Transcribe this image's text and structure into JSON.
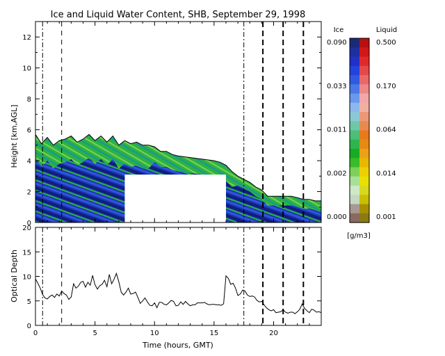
{
  "chart_data": [
    {
      "type": "heatmap",
      "title": "Ice and Liquid Water Content, SHB, September 29, 1998",
      "ylabel": "Height [km,AGL]",
      "xlim": [
        0,
        24
      ],
      "ylim": [
        0,
        13
      ],
      "xticks": [
        "0",
        "5",
        "10",
        "15",
        "20"
      ],
      "yticks": [
        "0",
        "2",
        "4",
        "6",
        "8",
        "10",
        "12"
      ],
      "ytick_values": [
        0,
        2,
        4,
        6,
        8,
        10,
        12
      ],
      "xtick_values": [
        0,
        5,
        10,
        15,
        20
      ],
      "vertical_lines": [
        {
          "t": 0.6,
          "style": "dash-dot"
        },
        {
          "t": 2.2,
          "style": "dash"
        },
        {
          "t": 17.5,
          "style": "dash-dot"
        },
        {
          "t": 19.1,
          "style": "dash-heavy"
        },
        {
          "t": 20.8,
          "style": "dash-heavy"
        },
        {
          "t": 22.5,
          "style": "dash-heavy"
        }
      ],
      "no_data_block": {
        "t_start": 7.5,
        "t_end": 16.0,
        "h_top": 3.1
      },
      "cloud_top_km": [
        [
          0.0,
          5.7
        ],
        [
          0.5,
          5.1
        ],
        [
          1.0,
          5.5
        ],
        [
          1.5,
          5.0
        ],
        [
          2.0,
          5.3
        ],
        [
          2.5,
          5.4
        ],
        [
          3.0,
          5.6
        ],
        [
          3.5,
          5.2
        ],
        [
          4.0,
          5.4
        ],
        [
          4.5,
          5.7
        ],
        [
          5.0,
          5.3
        ],
        [
          5.5,
          5.6
        ],
        [
          6.0,
          5.2
        ],
        [
          6.5,
          5.6
        ],
        [
          7.0,
          5.0
        ],
        [
          7.5,
          5.3
        ],
        [
          8.0,
          5.1
        ],
        [
          8.5,
          5.2
        ],
        [
          9.0,
          5.0
        ],
        [
          9.5,
          5.0
        ],
        [
          10.0,
          4.9
        ],
        [
          10.5,
          4.6
        ],
        [
          11.0,
          4.6
        ],
        [
          11.5,
          4.4
        ],
        [
          12.0,
          4.3
        ],
        [
          13.0,
          4.2
        ],
        [
          14.0,
          4.1
        ],
        [
          15.0,
          4.0
        ],
        [
          15.5,
          3.9
        ],
        [
          16.0,
          3.7
        ],
        [
          16.5,
          3.3
        ],
        [
          17.0,
          3.0
        ],
        [
          17.5,
          2.8
        ],
        [
          18.0,
          2.6
        ],
        [
          18.5,
          2.3
        ],
        [
          19.0,
          2.1
        ],
        [
          19.5,
          1.7
        ],
        [
          20.0,
          1.7
        ],
        [
          20.5,
          1.7
        ],
        [
          21.0,
          1.7
        ],
        [
          21.5,
          1.7
        ],
        [
          22.0,
          1.6
        ],
        [
          22.5,
          1.5
        ],
        [
          23.0,
          1.5
        ],
        [
          23.5,
          1.4
        ],
        [
          24.0,
          1.4
        ]
      ],
      "colorbar": {
        "ice_label": "Ice",
        "liquid_label": "Liquid",
        "units": "[g/m3]",
        "ice_ticks": [
          "0.090",
          "0.033",
          "0.011",
          "0.002",
          "0.000"
        ],
        "liquid_ticks": [
          "0.500",
          "0.170",
          "0.064",
          "0.014",
          "0.001"
        ],
        "ice_colors": [
          "#1a2a7a",
          "#1e2fa0",
          "#2030c8",
          "#2442dc",
          "#2f5ae0",
          "#4a78e6",
          "#6a98ea",
          "#8cb8ee",
          "#8ac8d8",
          "#6fc7a8",
          "#4cbe78",
          "#2fb44e",
          "#16ac24",
          "#38bc2a",
          "#7ed05a",
          "#a8e096",
          "#cfe8c8",
          "#c6d8c4",
          "#a89a90",
          "#8a6a60"
        ],
        "liquid_colors": [
          "#b81010",
          "#d01818",
          "#e02a2a",
          "#e44848",
          "#ea6868",
          "#ee8888",
          "#f2a8a8",
          "#f0b0a0",
          "#ec9878",
          "#e88a50",
          "#e87a1c",
          "#e68a10",
          "#eea018",
          "#e8b800",
          "#ecd000",
          "#e8e000",
          "#d8d820",
          "#c8c000",
          "#a89000",
          "#8c7a10"
        ]
      }
    },
    {
      "type": "line",
      "ylabel": "Optical Depth",
      "xlabel": "Time (hours, GMT)",
      "xlim": [
        0,
        24
      ],
      "ylim": [
        0,
        20
      ],
      "xticks": [
        "0",
        "5",
        "10",
        "15",
        "20"
      ],
      "xtick_values": [
        0,
        5,
        10,
        15,
        20
      ],
      "yticks": [
        "0",
        "5",
        "10",
        "15",
        "20"
      ],
      "ytick_values": [
        0,
        5,
        10,
        15,
        20
      ],
      "series": [
        {
          "x": [
            0.0,
            0.2,
            0.4,
            0.6,
            0.8,
            1.0,
            1.2,
            1.4,
            1.6,
            1.8,
            2.0,
            2.2,
            2.4,
            2.6,
            2.8,
            3.0,
            3.2,
            3.4,
            3.6,
            3.8,
            4.0,
            4.2,
            4.4,
            4.6,
            4.8,
            5.0,
            5.2,
            5.4,
            5.6,
            5.8,
            6.0,
            6.2,
            6.4,
            6.6,
            6.8,
            7.0,
            7.2,
            7.4,
            7.6,
            7.8,
            8.0,
            8.2,
            8.4,
            8.6,
            8.8,
            9.0,
            9.2,
            9.4,
            9.6,
            9.8,
            10.0,
            10.2,
            10.4,
            10.6,
            10.8,
            11.0,
            11.2,
            11.4,
            11.6,
            11.8,
            12.0,
            12.2,
            12.4,
            12.6,
            12.8,
            13.0,
            13.2,
            13.4,
            13.6,
            13.8,
            14.0,
            14.2,
            14.4,
            14.6,
            14.8,
            15.0,
            15.2,
            15.4,
            15.6,
            15.8,
            16.0,
            16.2,
            16.4,
            16.6,
            16.8,
            17.0,
            17.2,
            17.4,
            17.6,
            17.8,
            18.0,
            18.2,
            18.4,
            18.6,
            18.8,
            19.0,
            19.2,
            19.4,
            19.6,
            19.8,
            20.0,
            20.2,
            20.4,
            20.6,
            20.8,
            21.0,
            21.2,
            21.4,
            21.6,
            21.8,
            22.0,
            22.2,
            22.4,
            22.6,
            22.8,
            23.0,
            23.2,
            23.4,
            23.6,
            23.8,
            24.0
          ],
          "y": [
            9.5,
            8.6,
            7.6,
            6.3,
            5.6,
            5.4,
            5.9,
            6.2,
            5.7,
            6.4,
            6.0,
            7.0,
            6.5,
            6.2,
            5.3,
            5.8,
            8.5,
            7.6,
            8.0,
            8.8,
            9.0,
            7.8,
            8.8,
            8.2,
            10.2,
            8.3,
            7.4,
            8.1,
            8.4,
            9.2,
            7.9,
            10.4,
            8.5,
            9.4,
            10.6,
            8.9,
            6.8,
            6.2,
            6.8,
            7.6,
            6.4,
            6.5,
            6.8,
            5.7,
            4.5,
            5.0,
            5.6,
            4.8,
            4.1,
            4.0,
            4.6,
            3.6,
            4.7,
            4.7,
            4.3,
            4.2,
            4.6,
            5.1,
            4.9,
            4.0,
            4.1,
            4.8,
            4.3,
            4.9,
            4.4,
            4.0,
            4.2,
            4.2,
            4.6,
            4.6,
            4.6,
            4.7,
            4.4,
            4.2,
            4.3,
            4.3,
            4.2,
            4.2,
            4.1,
            4.4,
            10.1,
            9.6,
            8.4,
            8.6,
            7.6,
            6.1,
            6.4,
            7.2,
            7.0,
            6.2,
            5.9,
            6.0,
            5.8,
            5.1,
            4.8,
            4.9,
            4.2,
            3.6,
            3.2,
            3.0,
            3.2,
            2.6,
            2.7,
            2.8,
            3.2,
            2.7,
            2.5,
            2.7,
            2.7,
            2.4,
            2.8,
            3.3,
            4.4,
            3.5,
            3.0,
            2.6,
            3.3,
            3.1,
            2.7,
            2.8,
            2.6
          ]
        }
      ],
      "vertical_lines": [
        {
          "t": 0.6,
          "style": "dash-dot"
        },
        {
          "t": 2.2,
          "style": "dash"
        },
        {
          "t": 17.5,
          "style": "dash-dot"
        },
        {
          "t": 19.1,
          "style": "dash-heavy"
        },
        {
          "t": 20.8,
          "style": "dash-heavy"
        },
        {
          "t": 22.5,
          "style": "dash-heavy"
        }
      ]
    }
  ]
}
